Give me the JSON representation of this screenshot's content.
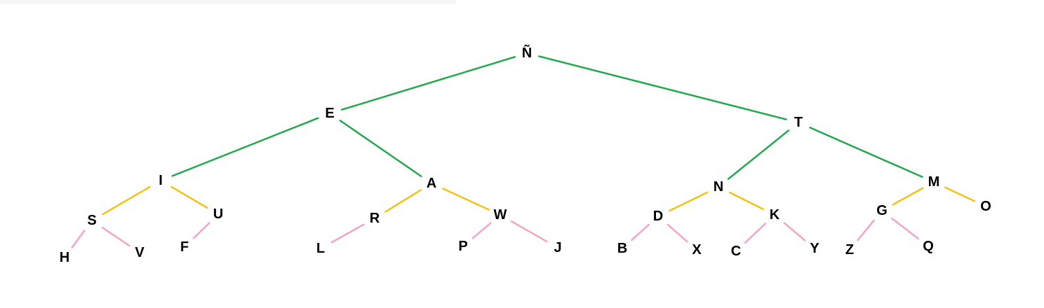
{
  "colors": {
    "level1": "#22a84c",
    "level2": "#f2c316",
    "level3": "#f4a6bd",
    "label": "#000000"
  },
  "nodes": [
    {
      "id": "n_tilde",
      "label": "Ñ"
    },
    {
      "id": "e",
      "label": "E"
    },
    {
      "id": "t",
      "label": "T"
    },
    {
      "id": "i",
      "label": "I"
    },
    {
      "id": "a",
      "label": "A"
    },
    {
      "id": "n",
      "label": "N"
    },
    {
      "id": "m",
      "label": "M"
    },
    {
      "id": "s",
      "label": "S"
    },
    {
      "id": "u",
      "label": "U"
    },
    {
      "id": "r",
      "label": "R"
    },
    {
      "id": "w",
      "label": "W"
    },
    {
      "id": "d",
      "label": "D"
    },
    {
      "id": "k",
      "label": "K"
    },
    {
      "id": "g",
      "label": "G"
    },
    {
      "id": "o",
      "label": "O"
    },
    {
      "id": "h",
      "label": "H"
    },
    {
      "id": "v",
      "label": "V"
    },
    {
      "id": "f",
      "label": "F"
    },
    {
      "id": "l",
      "label": "L"
    },
    {
      "id": "p",
      "label": "P"
    },
    {
      "id": "j",
      "label": "J"
    },
    {
      "id": "b",
      "label": "B"
    },
    {
      "id": "x",
      "label": "X"
    },
    {
      "id": "c",
      "label": "C"
    },
    {
      "id": "y",
      "label": "Y"
    },
    {
      "id": "z",
      "label": "Z"
    },
    {
      "id": "q",
      "label": "Q"
    }
  ],
  "edges": [
    {
      "from": "n_tilde",
      "to": "e",
      "color": "level1"
    },
    {
      "from": "n_tilde",
      "to": "t",
      "color": "level1"
    },
    {
      "from": "e",
      "to": "i",
      "color": "level1"
    },
    {
      "from": "e",
      "to": "a",
      "color": "level1"
    },
    {
      "from": "t",
      "to": "n",
      "color": "level1"
    },
    {
      "from": "t",
      "to": "m",
      "color": "level1"
    },
    {
      "from": "i",
      "to": "s",
      "color": "level2"
    },
    {
      "from": "i",
      "to": "u",
      "color": "level2"
    },
    {
      "from": "a",
      "to": "r",
      "color": "level2"
    },
    {
      "from": "a",
      "to": "w",
      "color": "level2"
    },
    {
      "from": "n",
      "to": "d",
      "color": "level2"
    },
    {
      "from": "n",
      "to": "k",
      "color": "level2"
    },
    {
      "from": "m",
      "to": "g",
      "color": "level2"
    },
    {
      "from": "m",
      "to": "o",
      "color": "level2"
    },
    {
      "from": "s",
      "to": "h",
      "color": "level3"
    },
    {
      "from": "s",
      "to": "v",
      "color": "level3"
    },
    {
      "from": "u",
      "to": "f",
      "color": "level3"
    },
    {
      "from": "r",
      "to": "l",
      "color": "level3"
    },
    {
      "from": "w",
      "to": "p",
      "color": "level3"
    },
    {
      "from": "w",
      "to": "j",
      "color": "level3"
    },
    {
      "from": "d",
      "to": "b",
      "color": "level3"
    },
    {
      "from": "d",
      "to": "x",
      "color": "level3"
    },
    {
      "from": "k",
      "to": "c",
      "color": "level3"
    },
    {
      "from": "k",
      "to": "y",
      "color": "level3"
    },
    {
      "from": "g",
      "to": "z",
      "color": "level3"
    },
    {
      "from": "g",
      "to": "q",
      "color": "level3"
    }
  ]
}
